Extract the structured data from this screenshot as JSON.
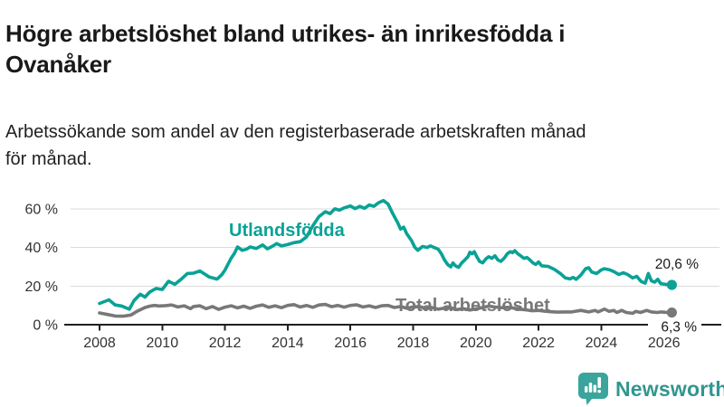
{
  "title": "Högre arbetslöshet bland utrikes- än inrikesfödda i\nOvanåker",
  "subtitle": "Arbetssökande som andel av den registerbaserade arbetskraften månad\nför månad.",
  "branding": {
    "logo_text": "Newsworthy",
    "logo_icon": "newsworthy-chart-bubble-icon",
    "brand_color": "#31968f",
    "bubble_color": "#3ba59d"
  },
  "colors": {
    "foreign_born_line": "#0aa296",
    "total_line": "#787878",
    "grid": "#dbdbdb",
    "axis": "#1f1f1f",
    "tick_text": "#333333",
    "annotation_text": "#1a1a1a"
  },
  "chart_data": {
    "type": "line",
    "title": "Högre arbetslöshet bland utrikes- än inrikesfödda i Ovanåker",
    "subtitle": "Arbetssökande som andel av den registerbaserade arbetskraften månad för månad.",
    "grid": true,
    "x_axis": {
      "ticks": [
        2008,
        2010,
        2012,
        2014,
        2016,
        2018,
        2020,
        2022,
        2024,
        2026
      ]
    },
    "y_axis": {
      "tick_labels": [
        "0 %",
        "20 %",
        "40 %",
        "60 %"
      ],
      "tick_values": [
        0,
        20,
        40,
        60
      ],
      "unit": "%"
    },
    "series": [
      {
        "name": "Utlandsfödda",
        "end_label": "20,6 %",
        "end_value": 20.6,
        "points": [
          [
            2008.0,
            11.0
          ],
          [
            2008.3,
            12.9
          ],
          [
            2008.5,
            10.2
          ],
          [
            2008.7,
            9.7
          ],
          [
            2008.95,
            8.0
          ],
          [
            2009.1,
            12.5
          ],
          [
            2009.3,
            15.8
          ],
          [
            2009.45,
            14.3
          ],
          [
            2009.6,
            16.9
          ],
          [
            2009.8,
            18.8
          ],
          [
            2010.0,
            18.2
          ],
          [
            2010.2,
            22.5
          ],
          [
            2010.4,
            20.9
          ],
          [
            2010.6,
            23.5
          ],
          [
            2010.8,
            26.5
          ],
          [
            2011.0,
            26.7
          ],
          [
            2011.2,
            27.8
          ],
          [
            2011.5,
            24.7
          ],
          [
            2011.75,
            23.6
          ],
          [
            2011.9,
            25.9
          ],
          [
            2012.0,
            28.3
          ],
          [
            2012.2,
            34.5
          ],
          [
            2012.3,
            36.9
          ],
          [
            2012.4,
            40.3
          ],
          [
            2012.55,
            38.5
          ],
          [
            2012.7,
            39.2
          ],
          [
            2012.8,
            40.3
          ],
          [
            2013.0,
            39.5
          ],
          [
            2013.2,
            41.3
          ],
          [
            2013.35,
            39.3
          ],
          [
            2013.5,
            40.5
          ],
          [
            2013.65,
            42.0
          ],
          [
            2013.8,
            40.8
          ],
          [
            2014.0,
            41.5
          ],
          [
            2014.2,
            42.5
          ],
          [
            2014.4,
            43.0
          ],
          [
            2014.6,
            45.5
          ],
          [
            2014.8,
            51.2
          ],
          [
            2015.0,
            56.0
          ],
          [
            2015.2,
            58.5
          ],
          [
            2015.35,
            57.5
          ],
          [
            2015.5,
            60.0
          ],
          [
            2015.65,
            59.3
          ],
          [
            2015.8,
            60.5
          ],
          [
            2016.0,
            61.5
          ],
          [
            2016.15,
            60.1
          ],
          [
            2016.3,
            61.3
          ],
          [
            2016.45,
            60.3
          ],
          [
            2016.6,
            62.0
          ],
          [
            2016.75,
            61.3
          ],
          [
            2016.9,
            63.2
          ],
          [
            2017.05,
            64.3
          ],
          [
            2017.2,
            62.5
          ],
          [
            2017.35,
            57.5
          ],
          [
            2017.5,
            53.0
          ],
          [
            2017.6,
            49.5
          ],
          [
            2017.7,
            50.5
          ],
          [
            2017.8,
            47.0
          ],
          [
            2017.95,
            43.5
          ],
          [
            2018.05,
            40.2
          ],
          [
            2018.15,
            38.5
          ],
          [
            2018.3,
            40.5
          ],
          [
            2018.45,
            40.0
          ],
          [
            2018.55,
            40.8
          ],
          [
            2018.68,
            39.9
          ],
          [
            2018.8,
            39.1
          ],
          [
            2018.9,
            36.7
          ],
          [
            2019.0,
            33.6
          ],
          [
            2019.1,
            31.2
          ],
          [
            2019.2,
            30.0
          ],
          [
            2019.27,
            32.0
          ],
          [
            2019.35,
            30.5
          ],
          [
            2019.45,
            29.7
          ],
          [
            2019.55,
            32.0
          ],
          [
            2019.65,
            33.6
          ],
          [
            2019.75,
            35.2
          ],
          [
            2019.81,
            37.5
          ],
          [
            2019.88,
            36.7
          ],
          [
            2019.95,
            37.8
          ],
          [
            2020.03,
            35.2
          ],
          [
            2020.12,
            32.8
          ],
          [
            2020.22,
            32.0
          ],
          [
            2020.32,
            34.1
          ],
          [
            2020.41,
            35.2
          ],
          [
            2020.51,
            34.4
          ],
          [
            2020.61,
            35.7
          ],
          [
            2020.7,
            33.6
          ],
          [
            2020.8,
            32.8
          ],
          [
            2020.9,
            34.4
          ],
          [
            2021.0,
            36.7
          ],
          [
            2021.1,
            37.8
          ],
          [
            2021.17,
            37.3
          ],
          [
            2021.24,
            38.3
          ],
          [
            2021.34,
            36.7
          ],
          [
            2021.43,
            35.7
          ],
          [
            2021.53,
            34.4
          ],
          [
            2021.63,
            34.8
          ],
          [
            2021.72,
            33.6
          ],
          [
            2021.82,
            32.0
          ],
          [
            2021.91,
            31.2
          ],
          [
            2022.0,
            32.5
          ],
          [
            2022.1,
            30.5
          ],
          [
            2022.3,
            30.2
          ],
          [
            2022.5,
            28.7
          ],
          [
            2022.7,
            26.4
          ],
          [
            2022.85,
            24.2
          ],
          [
            2023.0,
            23.7
          ],
          [
            2023.1,
            24.5
          ],
          [
            2023.2,
            23.5
          ],
          [
            2023.35,
            25.7
          ],
          [
            2023.5,
            29.0
          ],
          [
            2023.6,
            29.5
          ],
          [
            2023.7,
            27.2
          ],
          [
            2023.85,
            26.5
          ],
          [
            2024.0,
            28.4
          ],
          [
            2024.1,
            29.0
          ],
          [
            2024.27,
            28.4
          ],
          [
            2024.4,
            27.5
          ],
          [
            2024.56,
            26.0
          ],
          [
            2024.7,
            26.9
          ],
          [
            2024.84,
            26.0
          ],
          [
            2025.0,
            24.2
          ],
          [
            2025.13,
            25.0
          ],
          [
            2025.27,
            22.4
          ],
          [
            2025.4,
            21.5
          ],
          [
            2025.5,
            26.5
          ],
          [
            2025.6,
            22.7
          ],
          [
            2025.7,
            22.0
          ],
          [
            2025.8,
            23.5
          ],
          [
            2025.9,
            21.2
          ],
          [
            2026.05,
            20.9
          ],
          [
            2026.25,
            20.6
          ]
        ]
      },
      {
        "name": "Total arbetslöshet",
        "end_label": "6,3 %",
        "end_value": 6.3,
        "points": [
          [
            2008.0,
            6.1
          ],
          [
            2008.25,
            5.3
          ],
          [
            2008.5,
            4.5
          ],
          [
            2008.75,
            4.4
          ],
          [
            2009.0,
            5.0
          ],
          [
            2009.2,
            7.0
          ],
          [
            2009.45,
            8.9
          ],
          [
            2009.6,
            9.6
          ],
          [
            2009.75,
            10.0
          ],
          [
            2009.9,
            9.7
          ],
          [
            2010.1,
            9.9
          ],
          [
            2010.3,
            10.2
          ],
          [
            2010.5,
            9.2
          ],
          [
            2010.7,
            9.8
          ],
          [
            2010.9,
            8.3
          ],
          [
            2011.0,
            9.4
          ],
          [
            2011.2,
            9.8
          ],
          [
            2011.4,
            8.3
          ],
          [
            2011.6,
            9.4
          ],
          [
            2011.8,
            7.9
          ],
          [
            2012.0,
            9.1
          ],
          [
            2012.2,
            9.8
          ],
          [
            2012.4,
            8.7
          ],
          [
            2012.6,
            9.6
          ],
          [
            2012.8,
            8.5
          ],
          [
            2013.0,
            9.6
          ],
          [
            2013.2,
            10.2
          ],
          [
            2013.4,
            9.0
          ],
          [
            2013.6,
            9.8
          ],
          [
            2013.8,
            8.8
          ],
          [
            2014.0,
            10.0
          ],
          [
            2014.2,
            10.4
          ],
          [
            2014.4,
            9.2
          ],
          [
            2014.6,
            10.0
          ],
          [
            2014.8,
            9.0
          ],
          [
            2015.0,
            10.2
          ],
          [
            2015.2,
            10.5
          ],
          [
            2015.4,
            9.3
          ],
          [
            2015.6,
            10.0
          ],
          [
            2015.8,
            9.1
          ],
          [
            2016.0,
            10.0
          ],
          [
            2016.2,
            10.3
          ],
          [
            2016.4,
            9.2
          ],
          [
            2016.6,
            9.8
          ],
          [
            2016.8,
            8.9
          ],
          [
            2017.0,
            9.8
          ],
          [
            2017.2,
            10.0
          ],
          [
            2017.4,
            8.9
          ],
          [
            2017.6,
            9.4
          ],
          [
            2017.8,
            8.5
          ],
          [
            2018.0,
            9.2
          ],
          [
            2018.2,
            9.4
          ],
          [
            2018.4,
            8.4
          ],
          [
            2018.6,
            8.9
          ],
          [
            2018.8,
            8.0
          ],
          [
            2019.0,
            8.6
          ],
          [
            2019.2,
            8.8
          ],
          [
            2019.4,
            7.8
          ],
          [
            2019.6,
            8.3
          ],
          [
            2019.8,
            7.6
          ],
          [
            2020.0,
            8.2
          ],
          [
            2020.2,
            8.8
          ],
          [
            2020.4,
            9.6
          ],
          [
            2020.6,
            9.2
          ],
          [
            2020.8,
            8.8
          ],
          [
            2021.0,
            9.0
          ],
          [
            2021.2,
            8.6
          ],
          [
            2021.4,
            8.0
          ],
          [
            2021.6,
            7.7
          ],
          [
            2021.8,
            7.2
          ],
          [
            2022.0,
            7.4
          ],
          [
            2022.2,
            7.0
          ],
          [
            2022.4,
            6.7
          ],
          [
            2022.6,
            6.5
          ],
          [
            2022.8,
            6.6
          ],
          [
            2023.05,
            6.6
          ],
          [
            2023.35,
            7.4
          ],
          [
            2023.6,
            6.6
          ],
          [
            2023.8,
            7.4
          ],
          [
            2023.9,
            6.6
          ],
          [
            2024.1,
            8.1
          ],
          [
            2024.25,
            6.9
          ],
          [
            2024.4,
            7.4
          ],
          [
            2024.5,
            6.3
          ],
          [
            2024.65,
            7.4
          ],
          [
            2024.8,
            6.3
          ],
          [
            2025.0,
            5.9
          ],
          [
            2025.1,
            6.9
          ],
          [
            2025.25,
            6.3
          ],
          [
            2025.45,
            7.4
          ],
          [
            2025.6,
            6.6
          ],
          [
            2025.8,
            6.3
          ],
          [
            2025.9,
            6.6
          ],
          [
            2026.05,
            6.4
          ],
          [
            2026.25,
            6.3
          ]
        ]
      }
    ]
  }
}
